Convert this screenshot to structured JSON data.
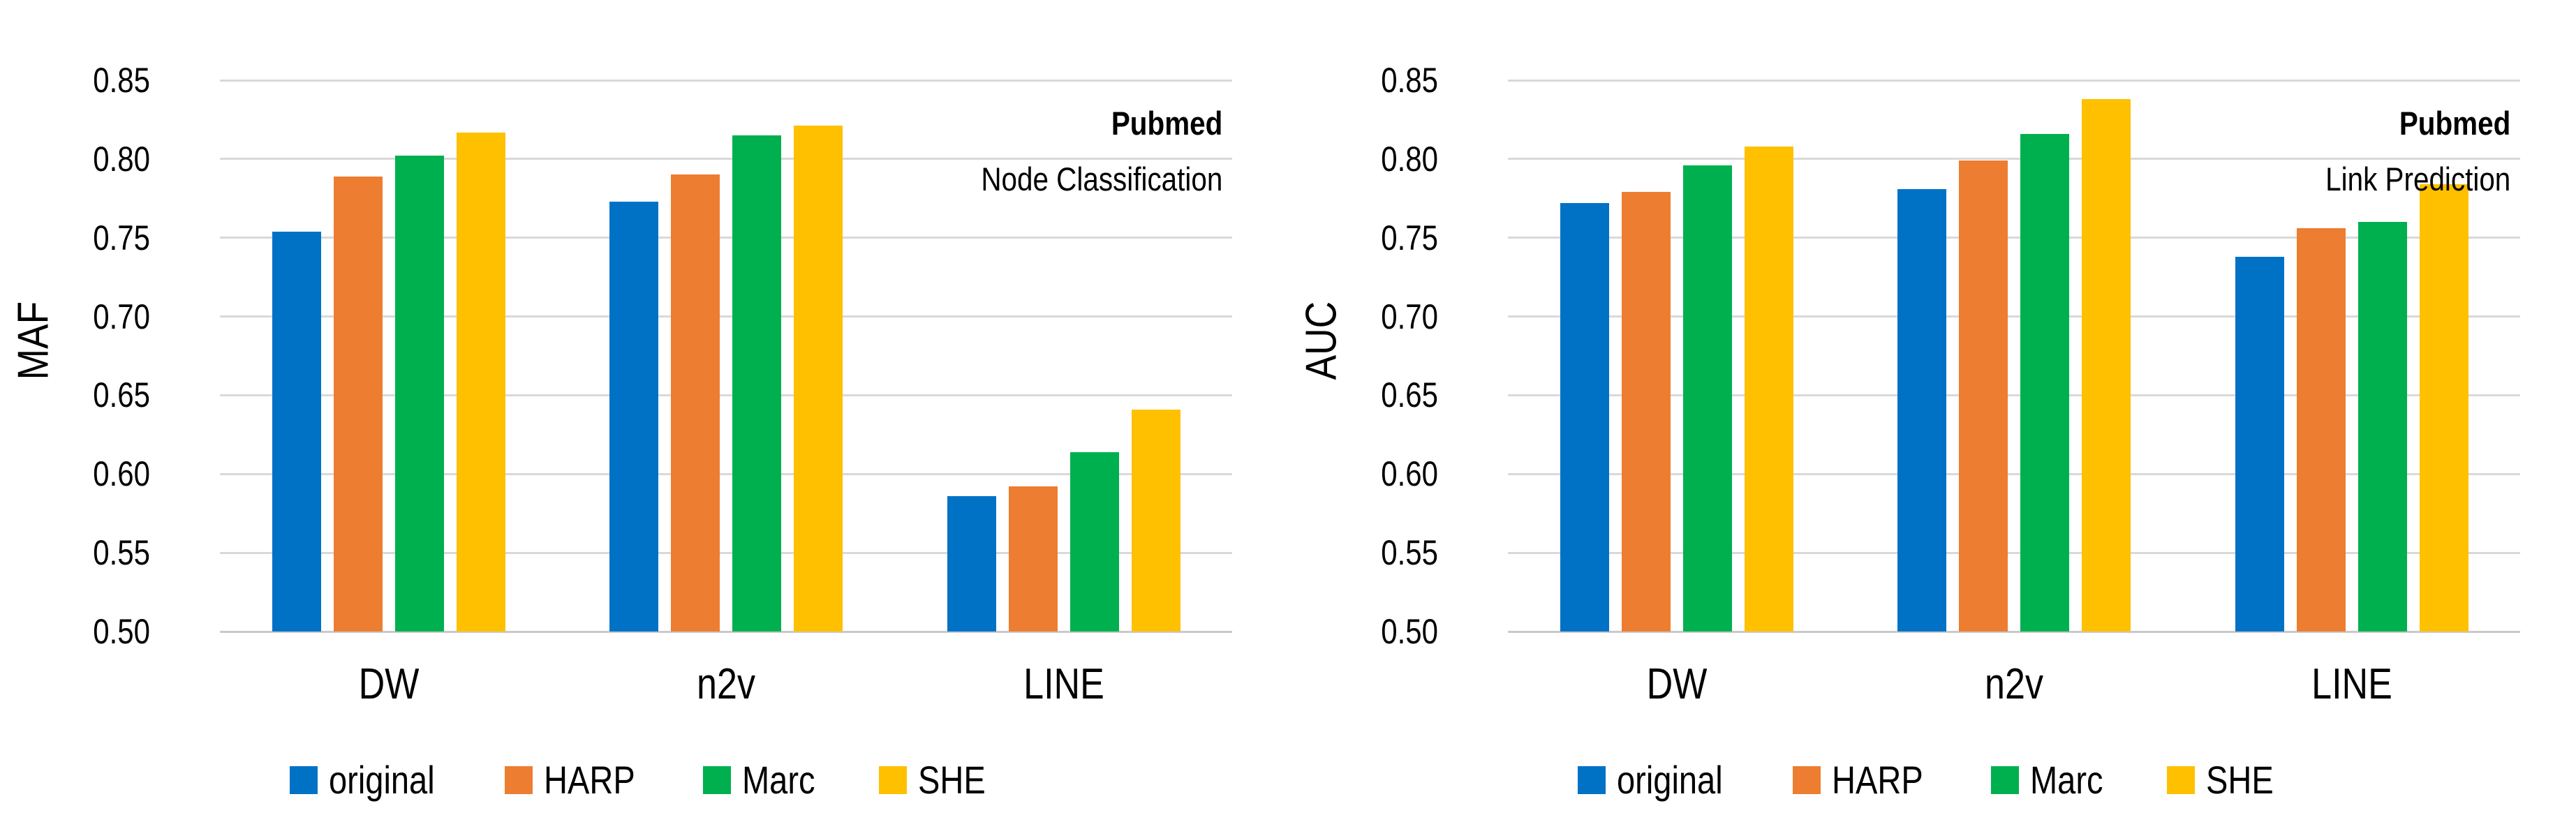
{
  "page": {
    "background": "#FFFFFF"
  },
  "colors": {
    "blue": "#0072C6",
    "orange": "#ED7D31",
    "green": "#00B04F",
    "yellow": "#FFC000",
    "gridline": "#D9D9D9",
    "axisline": "#C9C9C9",
    "text": "#000000"
  },
  "layout_hints": {
    "grid": true,
    "legend_position": "bottom",
    "annotation_position": "top-right"
  },
  "chart_data": [
    {
      "id": "node-classification",
      "type": "bar",
      "title_line1": "Pubmed",
      "title_line2": "Node Classification",
      "ylabel": "MAF",
      "xlabel": "",
      "categories": [
        "DW",
        "n2v",
        "LINE"
      ],
      "series": [
        {
          "name": "original",
          "color_key": "blue",
          "values": [
            0.754,
            0.773,
            0.586
          ]
        },
        {
          "name": "HARP",
          "color_key": "orange",
          "values": [
            0.789,
            0.79,
            0.592
          ]
        },
        {
          "name": "Marc",
          "color_key": "green",
          "values": [
            0.802,
            0.815,
            0.614
          ]
        },
        {
          "name": "SHE",
          "color_key": "yellow",
          "values": [
            0.817,
            0.821,
            0.641
          ]
        }
      ],
      "ylim": [
        0.5,
        0.85
      ],
      "ytick_step": 0.05,
      "yticks": [
        "0.85",
        "0.80",
        "0.75",
        "0.70",
        "0.65",
        "0.60",
        "0.55",
        "0.50"
      ],
      "legend": [
        "original",
        "HARP",
        "Marc",
        "SHE"
      ]
    },
    {
      "id": "link-prediction",
      "type": "bar",
      "title_line1": "Pubmed",
      "title_line2": "Link Prediction",
      "ylabel": "AUC",
      "xlabel": "",
      "categories": [
        "DW",
        "n2v",
        "LINE"
      ],
      "series": [
        {
          "name": "original",
          "color_key": "blue",
          "values": [
            0.772,
            0.781,
            0.738
          ]
        },
        {
          "name": "HARP",
          "color_key": "orange",
          "values": [
            0.779,
            0.799,
            0.756
          ]
        },
        {
          "name": "Marc",
          "color_key": "green",
          "values": [
            0.796,
            0.816,
            0.76
          ]
        },
        {
          "name": "SHE",
          "color_key": "yellow",
          "values": [
            0.808,
            0.838,
            0.784
          ]
        }
      ],
      "ylim": [
        0.5,
        0.85
      ],
      "ytick_step": 0.05,
      "yticks": [
        "0.85",
        "0.80",
        "0.75",
        "0.70",
        "0.65",
        "0.60",
        "0.55",
        "0.50"
      ],
      "legend": [
        "original",
        "HARP",
        "Marc",
        "SHE"
      ]
    }
  ]
}
